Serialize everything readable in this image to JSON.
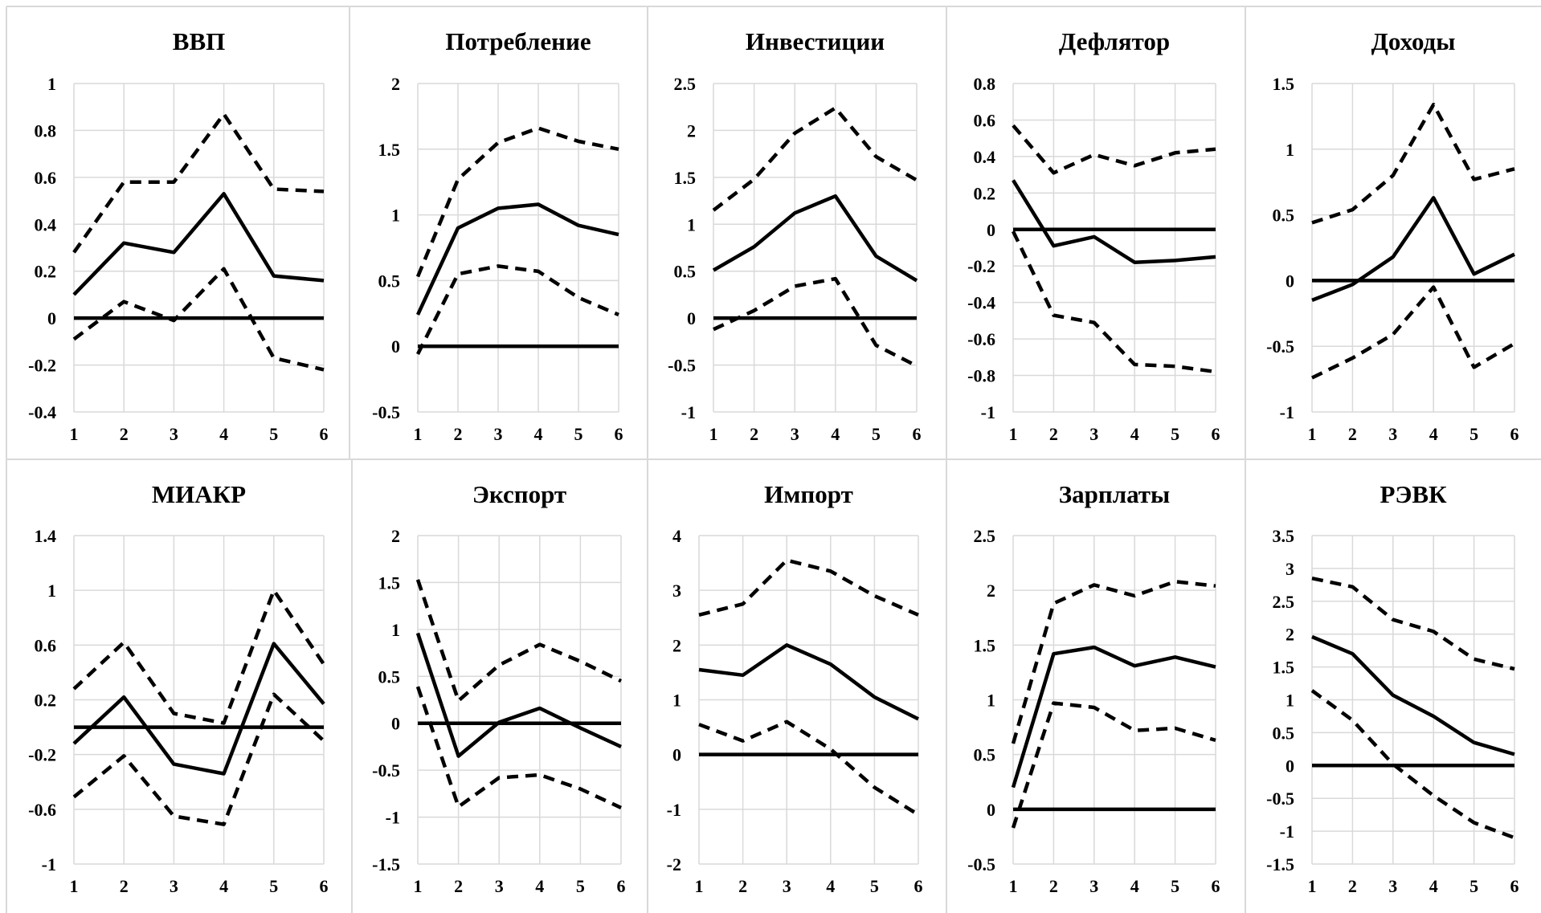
{
  "chart_data": [
    {
      "type": "line",
      "title": "ВВП",
      "x": [
        1,
        2,
        3,
        4,
        5,
        6
      ],
      "yticks": [
        "1",
        "0.8",
        "0.6",
        "0.4",
        "0.2",
        "0",
        "-0.2",
        "-0.4"
      ],
      "ylim": [
        -0.4,
        1
      ],
      "zero_line": 0,
      "series": [
        {
          "style": "solid",
          "values": [
            0.1,
            0.32,
            0.28,
            0.53,
            0.18,
            0.16
          ]
        },
        {
          "style": "dashed",
          "values": [
            0.28,
            0.58,
            0.58,
            0.87,
            0.55,
            0.54
          ]
        },
        {
          "style": "dashed",
          "values": [
            -0.09,
            0.07,
            -0.01,
            0.21,
            -0.17,
            -0.22
          ]
        }
      ]
    },
    {
      "type": "line",
      "title": "Потребление",
      "x": [
        1,
        2,
        3,
        4,
        5,
        6
      ],
      "yticks": [
        "2",
        "1.5",
        "1",
        "0.5",
        "0",
        "-0.5"
      ],
      "ylim": [
        -0.5,
        2
      ],
      "zero_line": 0,
      "series": [
        {
          "style": "solid",
          "values": [
            0.24,
            0.9,
            1.05,
            1.08,
            0.92,
            0.85
          ]
        },
        {
          "style": "dashed",
          "values": [
            0.53,
            1.27,
            1.55,
            1.66,
            1.56,
            1.5
          ]
        },
        {
          "style": "dashed",
          "values": [
            -0.06,
            0.55,
            0.61,
            0.57,
            0.37,
            0.24
          ]
        }
      ]
    },
    {
      "type": "line",
      "title": "Инвестиции",
      "x": [
        1,
        2,
        3,
        4,
        5,
        6
      ],
      "yticks": [
        "2.5",
        "2",
        "1.5",
        "1",
        "0.5",
        "0",
        "-0.5",
        "-1"
      ],
      "ylim": [
        -1,
        2.5
      ],
      "zero_line": 0,
      "series": [
        {
          "style": "solid",
          "values": [
            0.51,
            0.76,
            1.12,
            1.3,
            0.66,
            0.4
          ]
        },
        {
          "style": "dashed",
          "values": [
            1.15,
            1.48,
            1.97,
            2.24,
            1.72,
            1.47
          ]
        },
        {
          "style": "dashed",
          "values": [
            -0.12,
            0.08,
            0.34,
            0.42,
            -0.29,
            -0.51
          ]
        }
      ]
    },
    {
      "type": "line",
      "title": "Дефлятор",
      "x": [
        1,
        2,
        3,
        4,
        5,
        6
      ],
      "yticks": [
        "0.8",
        "0.6",
        "0.4",
        "0.2",
        "0",
        "-0.2",
        "-0.4",
        "-0.6",
        "-0.8",
        "-1"
      ],
      "ylim": [
        -1,
        0.8
      ],
      "zero_line": 0,
      "series": [
        {
          "style": "solid",
          "values": [
            0.27,
            -0.09,
            -0.04,
            -0.18,
            -0.17,
            -0.15
          ]
        },
        {
          "style": "dashed",
          "values": [
            0.57,
            0.31,
            0.41,
            0.35,
            0.42,
            0.44
          ]
        },
        {
          "style": "dashed",
          "values": [
            -0.01,
            -0.47,
            -0.51,
            -0.74,
            -0.75,
            -0.78
          ]
        }
      ]
    },
    {
      "type": "line",
      "title": "Доходы",
      "x": [
        1,
        2,
        3,
        4,
        5,
        6
      ],
      "yticks": [
        "1.5",
        "1",
        "0.5",
        "0",
        "-0.5",
        "-1"
      ],
      "ylim": [
        -1,
        1.5
      ],
      "zero_line": 0,
      "series": [
        {
          "style": "solid",
          "values": [
            -0.15,
            -0.03,
            0.18,
            0.63,
            0.05,
            0.2
          ]
        },
        {
          "style": "dashed",
          "values": [
            0.44,
            0.54,
            0.8,
            1.34,
            0.77,
            0.85
          ]
        },
        {
          "style": "dashed",
          "values": [
            -0.74,
            -0.59,
            -0.41,
            -0.05,
            -0.66,
            -0.48
          ]
        }
      ]
    },
    {
      "type": "line",
      "title": "МИАКР",
      "x": [
        1,
        2,
        3,
        4,
        5,
        6
      ],
      "yticks": [
        "1.4",
        "1",
        "0.6",
        "0.2",
        "-0.2",
        "-0.6",
        "-1"
      ],
      "ylim": [
        -1,
        1.4
      ],
      "zero_line": 0,
      "series": [
        {
          "style": "solid",
          "values": [
            -0.12,
            0.22,
            -0.27,
            -0.34,
            0.61,
            0.17
          ]
        },
        {
          "style": "dashed",
          "values": [
            0.28,
            0.62,
            0.1,
            0.03,
            1.0,
            0.46
          ]
        },
        {
          "style": "dashed",
          "values": [
            -0.51,
            -0.21,
            -0.65,
            -0.71,
            0.24,
            -0.1
          ]
        }
      ]
    },
    {
      "type": "line",
      "title": "Экспорт",
      "x": [
        1,
        2,
        3,
        4,
        5,
        6
      ],
      "yticks": [
        "2",
        "1.5",
        "1",
        "0.5",
        "0",
        "-0.5",
        "-1",
        "-1.5"
      ],
      "ylim": [
        -1.5,
        2
      ],
      "zero_line": 0,
      "series": [
        {
          "style": "solid",
          "values": [
            0.96,
            -0.35,
            0.01,
            0.16,
            -0.05,
            -0.25
          ]
        },
        {
          "style": "dashed",
          "values": [
            1.53,
            0.24,
            0.62,
            0.84,
            0.66,
            0.45
          ]
        },
        {
          "style": "dashed",
          "values": [
            0.39,
            -0.89,
            -0.58,
            -0.55,
            -0.7,
            -0.9
          ]
        }
      ]
    },
    {
      "type": "line",
      "title": "Импорт",
      "x": [
        1,
        2,
        3,
        4,
        5,
        6
      ],
      "yticks": [
        "4",
        "3",
        "2",
        "1",
        "0",
        "-1",
        "-2"
      ],
      "ylim": [
        -2,
        4
      ],
      "zero_line": 0,
      "series": [
        {
          "style": "solid",
          "values": [
            1.55,
            1.45,
            2.0,
            1.65,
            1.05,
            0.65
          ]
        },
        {
          "style": "dashed",
          "values": [
            2.55,
            2.75,
            3.55,
            3.35,
            2.9,
            2.55
          ]
        },
        {
          "style": "dashed",
          "values": [
            0.55,
            0.25,
            0.6,
            0.1,
            -0.6,
            -1.1
          ]
        }
      ]
    },
    {
      "type": "line",
      "title": "Зарплаты",
      "x": [
        1,
        2,
        3,
        4,
        5,
        6
      ],
      "yticks": [
        "2.5",
        "2",
        "1.5",
        "1",
        "0.5",
        "0",
        "-0.5"
      ],
      "ylim": [
        -0.5,
        2.5
      ],
      "zero_line": 0,
      "series": [
        {
          "style": "solid",
          "values": [
            0.2,
            1.42,
            1.48,
            1.31,
            1.39,
            1.3
          ]
        },
        {
          "style": "dashed",
          "values": [
            0.6,
            1.88,
            2.05,
            1.95,
            2.08,
            2.04
          ]
        },
        {
          "style": "dashed",
          "values": [
            -0.17,
            0.97,
            0.93,
            0.72,
            0.74,
            0.63
          ]
        }
      ]
    },
    {
      "type": "line",
      "title": "РЭВК",
      "x": [
        1,
        2,
        3,
        4,
        5,
        6
      ],
      "yticks": [
        "3.5",
        "3",
        "2.5",
        "2",
        "1.5",
        "1",
        "0.5",
        "0",
        "-0.5",
        "-1",
        "-1.5"
      ],
      "ylim": [
        -1.5,
        3.5
      ],
      "zero_line": 0,
      "series": [
        {
          "style": "solid",
          "values": [
            1.96,
            1.7,
            1.07,
            0.75,
            0.35,
            0.17
          ]
        },
        {
          "style": "dashed",
          "values": [
            2.85,
            2.72,
            2.22,
            2.04,
            1.62,
            1.47
          ]
        },
        {
          "style": "dashed",
          "values": [
            1.14,
            0.69,
            0.02,
            -0.46,
            -0.87,
            -1.1
          ]
        }
      ]
    }
  ]
}
